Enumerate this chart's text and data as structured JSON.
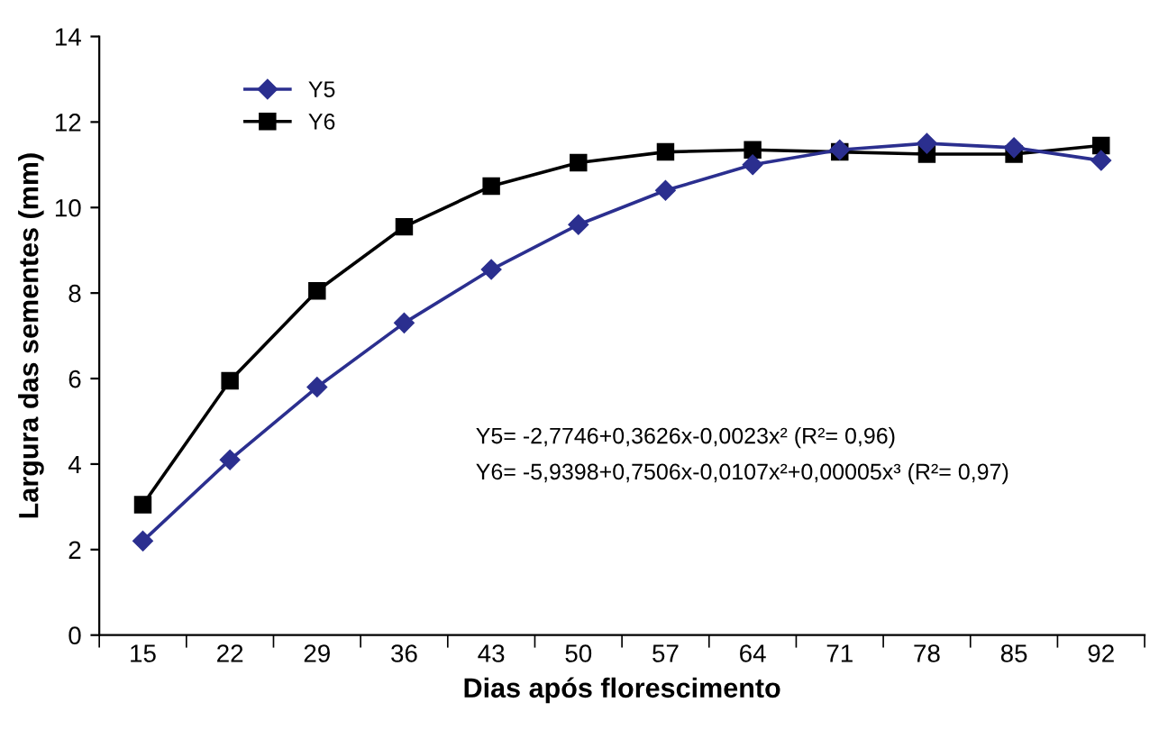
{
  "chart_data": {
    "type": "line",
    "xlabel": "Dias após florescimento",
    "ylabel": "Largura das sementes (mm)",
    "categories": [
      "15",
      "22",
      "29",
      "36",
      "43",
      "50",
      "57",
      "64",
      "71",
      "78",
      "85",
      "92"
    ],
    "series": [
      {
        "name": "Y5",
        "color": "#2b2f8f",
        "marker": "diamond",
        "values": [
          2.2,
          4.1,
          5.8,
          7.3,
          8.55,
          9.6,
          10.4,
          11.0,
          11.35,
          11.5,
          11.4,
          11.1
        ]
      },
      {
        "name": "Y6",
        "color": "#000000",
        "marker": "square",
        "values": [
          3.05,
          5.95,
          8.05,
          9.55,
          10.5,
          11.05,
          11.3,
          11.35,
          11.3,
          11.25,
          11.25,
          11.45
        ]
      }
    ],
    "ylim": [
      0,
      14
    ],
    "yticks": [
      0,
      2,
      4,
      6,
      8,
      10,
      12,
      14
    ],
    "grid": false,
    "legend": "top left",
    "line_style": "solid",
    "annotations": [
      "Y5= -2,7746+0,3626x-0,0023x² (R²= 0,96)",
      "Y6= -5,9398+0,7506x-0,0107x²+0,00005x³ (R²= 0,97)"
    ]
  }
}
